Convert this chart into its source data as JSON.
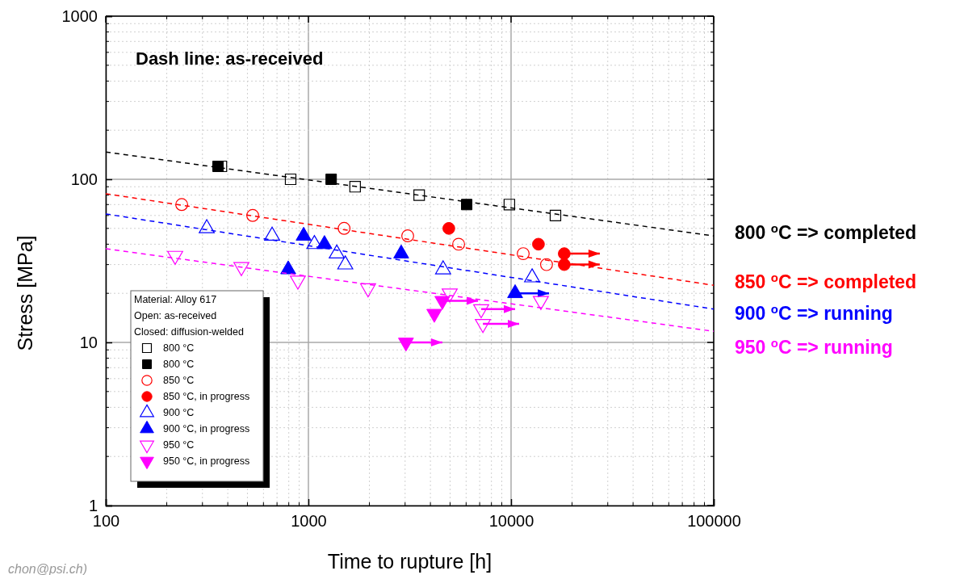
{
  "chart_data": {
    "type": "scatter",
    "xlabel": "Time to rupture [h]",
    "ylabel": "Stress [MPa]",
    "xlim": [
      100,
      100000
    ],
    "ylim": [
      1,
      1000
    ],
    "xticks": [
      100,
      1000,
      10000,
      100000
    ],
    "yticks": [
      1,
      10,
      100,
      1000
    ],
    "log": "xy",
    "grid": true,
    "legend": "bottom left",
    "legend_title": "Material: Alloy 617\nOpen: as-received\nClosed: diffusion-welded",
    "annotations": [
      "Dash line: as-received",
      "800 $^{o}$C => completed",
      "850 $^{o}$C => completed",
      "900 $^{o}$C => running",
      "950 $^{o}$C => running",
      "chon@psi.ch)"
    ],
    "series": [
      {
        "name": "800 °C",
        "color": "#000000",
        "marker": "square-open",
        "x": [
          372,
          817,
          1700,
          3520,
          9810,
          16560
        ],
        "values": [
          120,
          100,
          90,
          80,
          70,
          60
        ]
      },
      {
        "name": "800 °C",
        "color": "#000000",
        "marker": "square",
        "x": [
          358,
          1295,
          6040
        ],
        "values": [
          120,
          100,
          70
        ]
      },
      {
        "name": "850 °C",
        "color": "#ff0000",
        "marker": "circle-open",
        "x": [
          237,
          531,
          1500,
          3090,
          5510,
          11480,
          14960
        ],
        "values": [
          70,
          60,
          50,
          45,
          40,
          35,
          30
        ]
      },
      {
        "name": "850 °C, in progress",
        "color": "#ff0000",
        "marker": "circle",
        "x": [
          4930,
          13650,
          18300,
          18300
        ],
        "values": [
          50,
          40,
          35,
          30
        ],
        "xerrors": [
          null,
          null,
          [
            18300,
            27400
          ],
          [
            18300,
            27400
          ]
        ]
      },
      {
        "name": "900 °C",
        "color": "#0000ff",
        "marker": "triangle-open",
        "x": [
          315,
          662,
          1070,
          1380,
          1520,
          4620,
          12700
        ],
        "values": [
          50,
          45,
          40,
          35,
          30,
          28,
          25
        ]
      },
      {
        "name": "900 °C, in progress",
        "color": "#0000ff",
        "marker": "triangle",
        "x": [
          795,
          947,
          1200,
          2870,
          10470
        ],
        "values": [
          28,
          45,
          40,
          35,
          20
        ],
        "xerrors": [
          null,
          null,
          null,
          null,
          [
            10470,
            15400
          ]
        ]
      },
      {
        "name": "950 °C",
        "color": "#ff00ff",
        "marker": "triangle-down-open",
        "x": [
          220,
          467,
          887,
          1970,
          4980,
          7120,
          7260,
          14030
        ],
        "values": [
          34,
          29,
          24,
          21.5,
          20,
          16,
          13,
          18
        ],
        "xerrors": [
          null,
          null,
          null,
          null,
          null,
          [
            7120,
            10470
          ],
          [
            7260,
            10960
          ],
          null
        ]
      },
      {
        "name": "950 °C, in progress",
        "color": "#ff00ff",
        "marker": "triangle-down",
        "x": [
          3030,
          4180,
          4580
        ],
        "values": [
          10,
          15,
          18
        ],
        "xerrors": [
          [
            3030,
            4580
          ],
          null,
          [
            4580,
            6870
          ]
        ]
      },
      {
        "type": "line",
        "color": "#000000",
        "marker": "none",
        "line_style": "dashed",
        "x": [
          100,
          100000
        ],
        "values": [
          147,
          45
        ]
      },
      {
        "type": "line",
        "color": "#ff0000",
        "marker": "none",
        "line_style": "dashed",
        "x": [
          100,
          100000
        ],
        "values": [
          81.5,
          22.4
        ]
      },
      {
        "type": "line",
        "color": "#0000ff",
        "marker": "none",
        "line_style": "dashed",
        "x": [
          100,
          100000
        ],
        "values": [
          61.3,
          16
        ]
      },
      {
        "type": "line",
        "color": "#ff00ff",
        "marker": "none",
        "line_style": "dashed",
        "x": [
          100,
          100000
        ],
        "values": [
          37.5,
          11.7
        ]
      }
    ]
  }
}
